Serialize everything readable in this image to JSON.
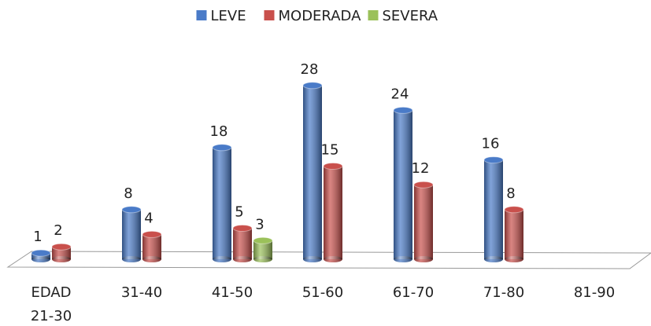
{
  "chart_data": {
    "type": "bar",
    "categories": [
      "EDAD 21-30",
      "31-40",
      "41-50",
      "51-60",
      "61-70",
      "71-80",
      "81-90"
    ],
    "series": [
      {
        "name": "LEVE",
        "color": "#4a7bc8",
        "values": [
          1,
          8,
          18,
          28,
          24,
          16,
          null
        ]
      },
      {
        "name": "MODERADA",
        "color": "#c9504c",
        "values": [
          2,
          4,
          5,
          15,
          12,
          8,
          null
        ]
      },
      {
        "name": "SEVERA",
        "color": "#9bc15a",
        "values": [
          null,
          null,
          3,
          null,
          null,
          null,
          null
        ]
      }
    ],
    "legend": "top"
  }
}
